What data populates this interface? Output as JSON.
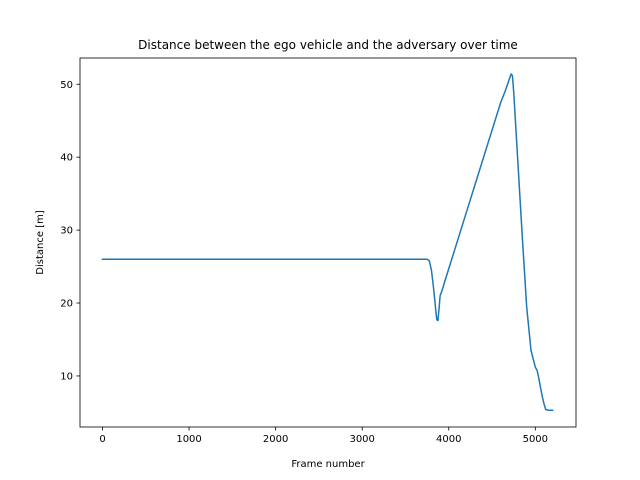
{
  "chart_data": {
    "type": "line",
    "title": "Distance between the ego vehicle and the adversary over time",
    "xlabel": "Frame number",
    "ylabel": "Distance [m]",
    "xlim": [
      -260,
      5470
    ],
    "ylim": [
      3.0,
      53.6
    ],
    "xticks": [
      0,
      1000,
      2000,
      3000,
      4000,
      5000
    ],
    "yticks": [
      10,
      20,
      30,
      40,
      50
    ],
    "grid": false,
    "legend": "none",
    "series": [
      {
        "color": "#1f77b4",
        "x": [
          0,
          3750,
          3775,
          3800,
          3825,
          3850,
          3862,
          3875,
          3890,
          3900,
          3925,
          3950,
          4000,
          4100,
          4200,
          4300,
          4400,
          4500,
          4600,
          4650,
          4700,
          4720,
          4735,
          4750,
          4800,
          4850,
          4900,
          4950,
          5000,
          5020,
          5040,
          5060,
          5080,
          5100,
          5120,
          5150,
          5200
        ],
        "y": [
          26.0,
          26.0,
          25.8,
          24.5,
          22.0,
          19.0,
          17.7,
          17.6,
          19.5,
          21.0,
          21.8,
          22.8,
          24.7,
          28.5,
          32.3,
          36.1,
          39.9,
          43.7,
          47.5,
          49.0,
          50.7,
          51.4,
          51.2,
          49.0,
          39.0,
          29.0,
          19.5,
          13.5,
          11.2,
          10.8,
          9.7,
          8.4,
          7.2,
          6.2,
          5.4,
          5.3,
          5.3
        ]
      }
    ]
  }
}
